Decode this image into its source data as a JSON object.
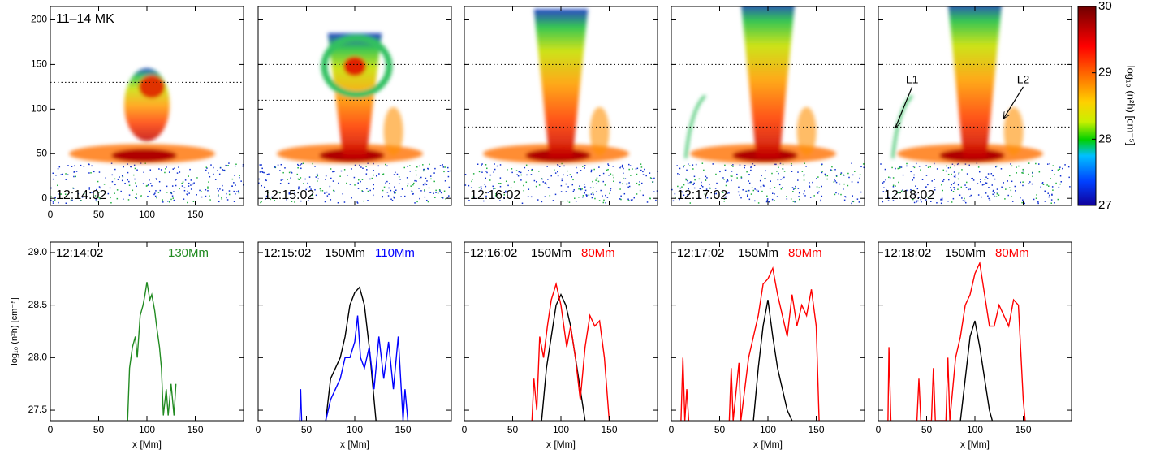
{
  "chart_data": [
    {
      "type": "image",
      "title": "11–14 MK",
      "label": "12:14:02",
      "xlim": [
        0,
        200
      ],
      "ylim": [
        -8,
        215
      ],
      "xticks": [
        0,
        50,
        100,
        150
      ],
      "yticks": [
        0,
        50,
        100,
        150,
        200
      ],
      "cuts": [
        130
      ]
    },
    {
      "type": "image",
      "label": "12:15:02",
      "xlim": [
        0,
        200
      ],
      "ylim": [
        -8,
        215
      ],
      "xticks": [
        0,
        50,
        100,
        150
      ],
      "yticks": [
        0,
        50,
        100,
        150,
        200
      ],
      "cuts": [
        150,
        110
      ]
    },
    {
      "type": "image",
      "label": "12:16:02",
      "xlim": [
        0,
        200
      ],
      "ylim": [
        -8,
        215
      ],
      "xticks": [
        0,
        50,
        100,
        150
      ],
      "yticks": [
        0,
        50,
        100,
        150,
        200
      ],
      "cuts": [
        150,
        80
      ]
    },
    {
      "type": "image",
      "label": "12:17:02",
      "xlim": [
        0,
        200
      ],
      "ylim": [
        -8,
        215
      ],
      "xticks": [
        0,
        50,
        100,
        150
      ],
      "yticks": [
        0,
        50,
        100,
        150,
        200
      ],
      "cuts": [
        150,
        80
      ]
    },
    {
      "type": "image",
      "label": "12:18:02",
      "xlim": [
        0,
        200
      ],
      "ylim": [
        -8,
        215
      ],
      "xticks": [
        0,
        50,
        100,
        150
      ],
      "yticks": [
        0,
        50,
        100,
        150,
        200
      ],
      "cuts": [
        150,
        80
      ],
      "annotations": [
        "L1",
        "L2"
      ]
    },
    {
      "type": "colorbar",
      "label": "log₁₀ (n²h) [cm⁻⁵]",
      "ylim": [
        27,
        30
      ],
      "yticks": [
        27,
        28,
        29,
        30
      ]
    },
    {
      "type": "line",
      "label": "12:14:02",
      "x_label": "x [Mm]",
      "y_label": "log₁₀ (n²h) [cm⁻⁵]",
      "xlim": [
        0,
        200
      ],
      "ylim": [
        27.4,
        29.1
      ],
      "xticks": [
        0,
        50,
        100,
        150
      ],
      "yticks": [
        27.5,
        {
          "value": 28.0,
          "label": "28.0"
        },
        28.5,
        {
          "value": 29.0,
          "label": "29.0"
        }
      ],
      "series": [
        {
          "name": "130Mm",
          "color": "#228b22",
          "x": [
            80,
            82,
            85,
            88,
            90,
            93,
            96,
            98,
            100,
            103,
            105,
            108,
            110,
            113,
            115,
            117,
            120,
            122,
            125,
            128,
            130
          ],
          "values": [
            27.4,
            27.9,
            28.1,
            28.2,
            28.0,
            28.4,
            28.5,
            28.6,
            28.72,
            28.55,
            28.6,
            28.45,
            28.3,
            28.1,
            27.9,
            27.45,
            27.7,
            27.45,
            27.75,
            27.45,
            27.75
          ]
        }
      ]
    },
    {
      "type": "line",
      "label": "12:15:02",
      "x_label": "x [Mm]",
      "xlim": [
        0,
        200
      ],
      "ylim": [
        27.4,
        29.1
      ],
      "xticks": [
        0,
        50,
        100,
        150
      ],
      "yticks": [
        27.5,
        {
          "value": 28.0,
          "label": "28.0"
        },
        28.5,
        {
          "value": 29.0,
          "label": "29.0"
        }
      ],
      "series": [
        {
          "name": "150Mm",
          "color": "#000000",
          "x": [
            70,
            75,
            80,
            85,
            90,
            95,
            100,
            105,
            110,
            115,
            118,
            122
          ],
          "values": [
            27.4,
            27.8,
            27.9,
            28.0,
            28.2,
            28.5,
            28.62,
            28.67,
            28.5,
            28.1,
            27.8,
            27.4
          ]
        },
        {
          "name": "110Mm",
          "color": "#0000ff",
          "x": [
            43,
            44,
            45,
            60,
            70,
            75,
            80,
            85,
            90,
            95,
            100,
            103,
            106,
            110,
            115,
            120,
            125,
            130,
            135,
            140,
            145,
            150,
            152,
            155
          ],
          "values": [
            27.4,
            27.7,
            27.4,
            null,
            27.4,
            27.6,
            27.7,
            27.8,
            28.0,
            28.0,
            28.15,
            28.4,
            28.0,
            27.9,
            28.1,
            27.7,
            28.2,
            27.8,
            28.15,
            27.7,
            28.2,
            27.4,
            27.7,
            27.4
          ]
        }
      ]
    },
    {
      "type": "line",
      "label": "12:16:02",
      "x_label": "x [Mm]",
      "xlim": [
        0,
        200
      ],
      "ylim": [
        27.4,
        29.1
      ],
      "xticks": [
        0,
        50,
        100,
        150
      ],
      "yticks": [
        27.5,
        {
          "value": 28.0,
          "label": "28.0"
        },
        28.5,
        {
          "value": 29.0,
          "label": "29.0"
        }
      ],
      "series": [
        {
          "name": "150Mm",
          "color": "#000000",
          "x": [
            80,
            85,
            90,
            95,
            100,
            105,
            110,
            115,
            120,
            125
          ],
          "values": [
            27.4,
            27.9,
            28.2,
            28.5,
            28.6,
            28.5,
            28.3,
            28.0,
            27.7,
            27.4
          ]
        },
        {
          "name": "80Mm",
          "color": "#ff0000",
          "x": [
            70,
            72,
            75,
            78,
            82,
            86,
            90,
            95,
            100,
            103,
            106,
            110,
            115,
            120,
            125,
            130,
            135,
            140,
            145,
            150
          ],
          "values": [
            27.4,
            27.8,
            27.5,
            28.2,
            28.0,
            28.3,
            28.55,
            28.7,
            28.5,
            28.3,
            28.1,
            28.3,
            28.0,
            27.6,
            28.1,
            28.4,
            28.3,
            28.35,
            28.0,
            27.4
          ]
        }
      ]
    },
    {
      "type": "line",
      "label": "12:17:02",
      "x_label": "x [Mm]",
      "xlim": [
        0,
        200
      ],
      "ylim": [
        27.4,
        29.1
      ],
      "xticks": [
        0,
        50,
        100,
        150
      ],
      "yticks": [
        27.5,
        {
          "value": 28.0,
          "label": "28.0"
        },
        28.5,
        {
          "value": 29.0,
          "label": "29.0"
        }
      ],
      "series": [
        {
          "name": "150Mm",
          "color": "#000000",
          "x": [
            85,
            90,
            95,
            100,
            105,
            110,
            115,
            120,
            125
          ],
          "values": [
            27.4,
            27.9,
            28.3,
            28.55,
            28.2,
            27.9,
            27.7,
            27.5,
            27.4
          ]
        },
        {
          "name": "80Mm",
          "color": "#ff0000",
          "x": [
            10,
            12,
            14,
            16,
            18,
            40,
            60,
            62,
            64,
            70,
            72,
            80,
            85,
            90,
            95,
            100,
            105,
            110,
            115,
            120,
            125,
            130,
            135,
            140,
            145,
            150,
            153
          ],
          "values": [
            27.4,
            28.0,
            27.4,
            27.7,
            27.4,
            null,
            27.4,
            27.9,
            27.4,
            27.95,
            27.4,
            28.0,
            28.2,
            28.4,
            28.7,
            28.75,
            28.85,
            28.6,
            28.4,
            28.2,
            28.6,
            28.3,
            28.5,
            28.4,
            28.65,
            28.3,
            27.4
          ]
        }
      ]
    },
    {
      "type": "line",
      "label": "12:18:02",
      "x_label": "x [Mm]",
      "xlim": [
        0,
        200
      ],
      "ylim": [
        27.4,
        29.1
      ],
      "xticks": [
        0,
        50,
        100,
        150
      ],
      "yticks": [
        27.5,
        {
          "value": 28.0,
          "label": "28.0"
        },
        28.5,
        {
          "value": 29.0,
          "label": "29.0"
        }
      ],
      "series": [
        {
          "name": "150Mm",
          "color": "#000000",
          "x": [
            85,
            90,
            95,
            100,
            105,
            110,
            115,
            118
          ],
          "values": [
            27.4,
            27.8,
            28.2,
            28.35,
            28.1,
            27.8,
            27.5,
            27.4
          ]
        },
        {
          "name": "80Mm",
          "color": "#ff0000",
          "x": [
            10,
            11,
            13,
            30,
            40,
            42,
            44,
            55,
            57,
            59,
            70,
            72,
            74,
            80,
            85,
            90,
            95,
            100,
            105,
            110,
            115,
            120,
            125,
            130,
            135,
            140,
            145,
            150,
            152
          ],
          "values": [
            27.4,
            28.1,
            27.4,
            null,
            27.4,
            27.8,
            27.4,
            27.4,
            27.9,
            27.4,
            27.4,
            28.0,
            27.4,
            28.0,
            28.2,
            28.5,
            28.6,
            28.8,
            28.9,
            28.6,
            28.3,
            28.3,
            28.5,
            28.4,
            28.3,
            28.55,
            28.5,
            27.6,
            27.4
          ]
        }
      ]
    }
  ]
}
